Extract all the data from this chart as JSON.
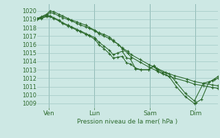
{
  "background_color": "#cde8e4",
  "grid_color": "#a0c8c4",
  "line_color": "#2d6a2d",
  "ylabel": "Pression niveau de la mer( hPa )",
  "ylim": [
    1008.5,
    1020.8
  ],
  "yticks": [
    1009,
    1010,
    1011,
    1012,
    1013,
    1014,
    1015,
    1016,
    1017,
    1018,
    1019,
    1020
  ],
  "day_labels": [
    "Ven",
    "Lun",
    "Sam",
    "Dim"
  ],
  "vline_positions": [
    0.065,
    0.315,
    0.625,
    0.875
  ],
  "series": [
    {
      "x": [
        0.0,
        0.02,
        0.05,
        0.07,
        0.09,
        0.12,
        0.14,
        0.17,
        0.19,
        0.22,
        0.24,
        0.27,
        0.29,
        0.32,
        0.34,
        0.37,
        0.4,
        0.42,
        0.45,
        0.47,
        0.5,
        0.52,
        0.57,
        0.62,
        0.66,
        0.71,
        0.76,
        0.83,
        0.87,
        0.92,
        0.97,
        1.0
      ],
      "y": [
        1019.1,
        1019.2,
        1019.5,
        1019.8,
        1019.7,
        1019.4,
        1019.2,
        1019.0,
        1018.8,
        1018.5,
        1018.3,
        1018.1,
        1017.9,
        1017.6,
        1017.3,
        1017.0,
        1016.7,
        1016.4,
        1016.0,
        1015.6,
        1015.2,
        1014.8,
        1014.2,
        1013.6,
        1013.2,
        1012.7,
        1012.3,
        1011.9,
        1011.6,
        1011.4,
        1011.2,
        1011.1
      ]
    },
    {
      "x": [
        0.0,
        0.02,
        0.05,
        0.07,
        0.09,
        0.12,
        0.14,
        0.17,
        0.19,
        0.22,
        0.24,
        0.27,
        0.29,
        0.32,
        0.34,
        0.37,
        0.4,
        0.42,
        0.45,
        0.47,
        0.5,
        0.52,
        0.57,
        0.62,
        0.66,
        0.71,
        0.76,
        0.83,
        0.87,
        0.92,
        0.97,
        1.0
      ],
      "y": [
        1019.1,
        1019.3,
        1019.6,
        1020.0,
        1019.9,
        1019.6,
        1019.4,
        1019.1,
        1018.9,
        1018.7,
        1018.5,
        1018.3,
        1018.0,
        1017.7,
        1017.4,
        1017.2,
        1016.9,
        1016.5,
        1016.0,
        1015.5,
        1015.0,
        1014.5,
        1013.9,
        1013.3,
        1012.9,
        1012.4,
        1012.0,
        1011.6,
        1011.3,
        1011.1,
        1010.9,
        1010.8
      ]
    },
    {
      "x": [
        0.0,
        0.02,
        0.05,
        0.07,
        0.09,
        0.12,
        0.14,
        0.17,
        0.19,
        0.22,
        0.24,
        0.27,
        0.29,
        0.32,
        0.34,
        0.37,
        0.4,
        0.42,
        0.445,
        0.47,
        0.495,
        0.515,
        0.545,
        0.575,
        0.615,
        0.645,
        0.67,
        0.695,
        0.73,
        0.77,
        0.82,
        0.87,
        0.92,
        0.97,
        1.0
      ],
      "y": [
        1019.1,
        1019.2,
        1019.4,
        1019.4,
        1019.2,
        1018.9,
        1018.6,
        1018.3,
        1018.1,
        1017.8,
        1017.6,
        1017.3,
        1017.1,
        1016.8,
        1016.3,
        1015.8,
        1015.3,
        1014.8,
        1015.0,
        1015.2,
        1014.4,
        1014.3,
        1013.1,
        1013.0,
        1013.0,
        1013.5,
        1013.0,
        1012.7,
        1012.5,
        1011.5,
        1010.2,
        1009.3,
        1011.4,
        1011.7,
        1012.0
      ]
    },
    {
      "x": [
        0.0,
        0.02,
        0.05,
        0.07,
        0.09,
        0.12,
        0.14,
        0.17,
        0.19,
        0.22,
        0.24,
        0.27,
        0.29,
        0.32,
        0.34,
        0.37,
        0.4,
        0.42,
        0.445,
        0.47,
        0.495,
        0.515,
        0.545,
        0.575,
        0.615,
        0.645,
        0.67,
        0.695,
        0.73,
        0.77,
        0.82,
        0.87,
        0.88,
        0.91,
        0.95,
        0.98,
        1.0
      ],
      "y": [
        1019.0,
        1019.1,
        1019.3,
        1019.3,
        1019.1,
        1018.8,
        1018.5,
        1018.2,
        1018.0,
        1017.7,
        1017.5,
        1017.2,
        1017.0,
        1016.6,
        1016.0,
        1015.5,
        1014.9,
        1014.4,
        1014.5,
        1014.6,
        1013.8,
        1013.7,
        1013.2,
        1013.0,
        1013.0,
        1013.4,
        1012.8,
        1012.5,
        1012.2,
        1011.0,
        1009.8,
        1009.0,
        1009.1,
        1009.5,
        1011.5,
        1011.9,
        1012.2
      ]
    }
  ]
}
